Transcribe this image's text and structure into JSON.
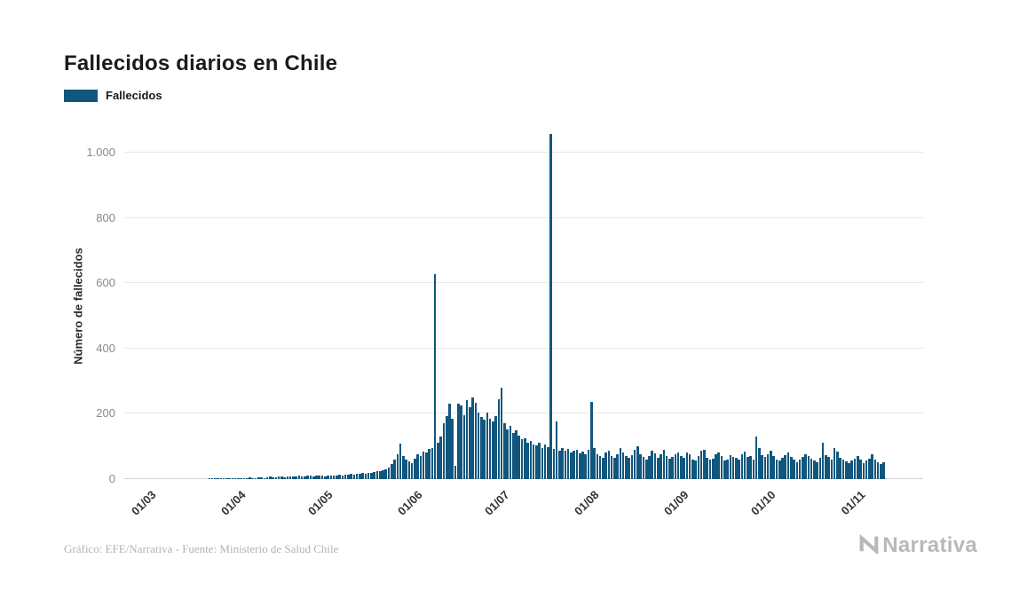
{
  "title": "Fallecidos diarios en Chile",
  "legend": {
    "label": "Fallecidos",
    "color": "#11567d"
  },
  "footer": {
    "credit": "Gráfico: EFE/Narrativa - Fuente: Ministerio de Salud Chile",
    "brand": "Narrativa"
  },
  "chart_data": {
    "type": "bar",
    "title": "Fallecidos diarios en Chile",
    "series_name": "Fallecidos",
    "xlabel": "",
    "ylabel": "Número de fallecidos",
    "bar_color": "#11567d",
    "grid": "horizontal",
    "legend_position": "top-left",
    "x_unit": "day",
    "x_tick_labels": [
      "01/03",
      "01/04",
      "01/05",
      "01/06",
      "01/07",
      "01/08",
      "01/09",
      "01/10",
      "01/11"
    ],
    "x_tick_indices": [
      0,
      31,
      61,
      92,
      122,
      153,
      184,
      214,
      245
    ],
    "y_ticks": [
      0,
      200,
      400,
      600,
      800,
      1000
    ],
    "y_tick_labels": [
      "0",
      "200",
      "400",
      "600",
      "800",
      "1.000"
    ],
    "ylim": [
      0,
      1060
    ],
    "values": [
      0,
      0,
      0,
      0,
      0,
      0,
      0,
      0,
      0,
      0,
      0,
      0,
      0,
      0,
      0,
      0,
      0,
      0,
      0,
      0,
      0,
      1,
      1,
      2,
      1,
      2,
      2,
      1,
      2,
      3,
      2,
      3,
      2,
      4,
      3,
      5,
      4,
      3,
      5,
      6,
      4,
      5,
      7,
      6,
      5,
      8,
      7,
      6,
      9,
      8,
      7,
      9,
      10,
      8,
      9,
      11,
      10,
      9,
      12,
      10,
      11,
      9,
      11,
      10,
      12,
      11,
      13,
      12,
      14,
      13,
      15,
      14,
      16,
      15,
      18,
      17,
      20,
      19,
      22,
      25,
      24,
      28,
      30,
      35,
      45,
      60,
      75,
      108,
      70,
      61,
      55,
      50,
      62,
      75,
      70,
      85,
      81,
      92,
      96,
      627,
      112,
      130,
      170,
      192,
      231,
      186,
      40,
      232,
      226,
      196,
      241,
      221,
      251,
      235,
      205,
      190,
      181,
      203,
      186,
      176,
      192,
      246,
      280,
      172,
      152,
      162,
      142,
      150,
      132,
      122,
      126,
      112,
      118,
      106,
      102,
      112,
      96,
      106,
      98,
      1057,
      92,
      176,
      86,
      96,
      88,
      93,
      81,
      86,
      91,
      79,
      83,
      76,
      90,
      237,
      95,
      76,
      71,
      66,
      81,
      86,
      72,
      64,
      76,
      96,
      82,
      70,
      66,
      73,
      91,
      101,
      76,
      68,
      61,
      71,
      86,
      79,
      66,
      76,
      89,
      71,
      63,
      69,
      75,
      81,
      71,
      66,
      81,
      76,
      61,
      56,
      71,
      86,
      91,
      66,
      59,
      63,
      76,
      81,
      71,
      56,
      61,
      73,
      69,
      65,
      59,
      76,
      83,
      67,
      71,
      61,
      131,
      96,
      73,
      69,
      76,
      86,
      71,
      61,
      56,
      66,
      73,
      81,
      69,
      61,
      53,
      59,
      67,
      75,
      71,
      63,
      57,
      51,
      65,
      111,
      73,
      69,
      59,
      96,
      84,
      66,
      61,
      55,
      49,
      57,
      63,
      71,
      61,
      49,
      56,
      63,
      76,
      59,
      51,
      46,
      53
    ]
  }
}
